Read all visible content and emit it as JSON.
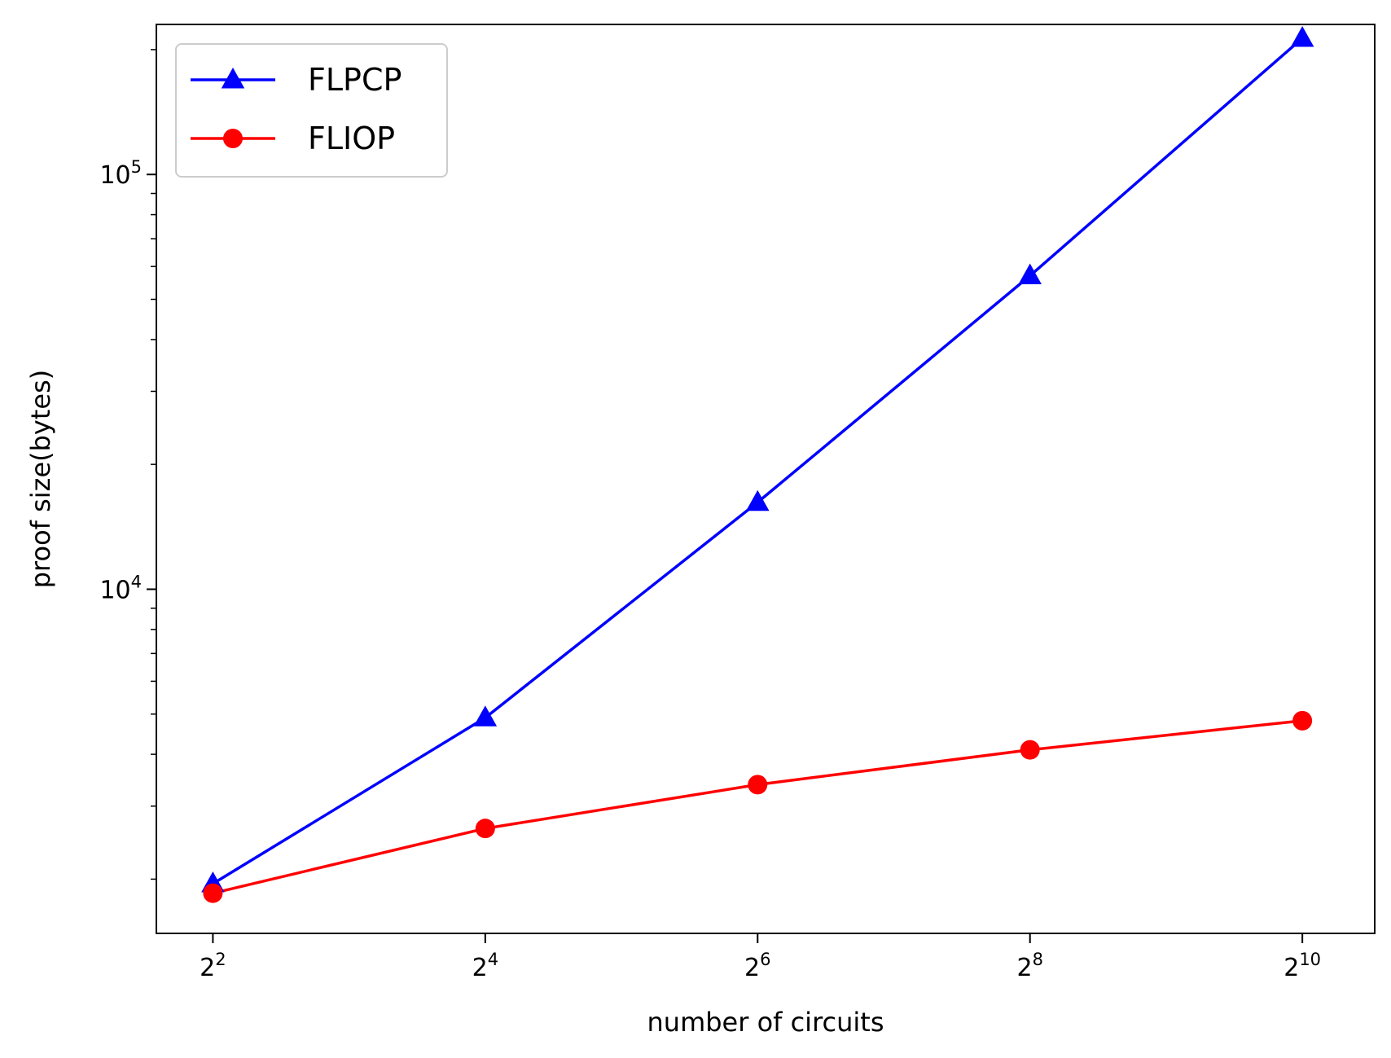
{
  "chart_data": {
    "type": "line",
    "xscale": "log2",
    "yscale": "log10",
    "xlabel": "number of circuits",
    "ylabel": "proof size(bytes)",
    "x": [
      4,
      16,
      64,
      256,
      1024
    ],
    "x_tick_labels": [
      {
        "base": "2",
        "exp": "2"
      },
      {
        "base": "2",
        "exp": "4"
      },
      {
        "base": "2",
        "exp": "6"
      },
      {
        "base": "2",
        "exp": "8"
      },
      {
        "base": "2",
        "exp": "10"
      }
    ],
    "y_tick_labels": [
      {
        "value": 10000,
        "base": "10",
        "exp": "4"
      },
      {
        "value": 100000,
        "base": "10",
        "exp": "5"
      }
    ],
    "xlim": [
      3.0,
      1480
    ],
    "ylim": [
      1480,
      230000
    ],
    "series": [
      {
        "name": "FLPCP",
        "color": "#0000ff",
        "marker": "triangle",
        "values": [
          1950,
          4900,
          16200,
          57000,
          213000
        ]
      },
      {
        "name": "FLIOP",
        "color": "#ff0000",
        "marker": "circle",
        "values": [
          1850,
          2650,
          3380,
          4100,
          4820
        ]
      }
    ],
    "legend": "upper-left",
    "grid": false
  }
}
